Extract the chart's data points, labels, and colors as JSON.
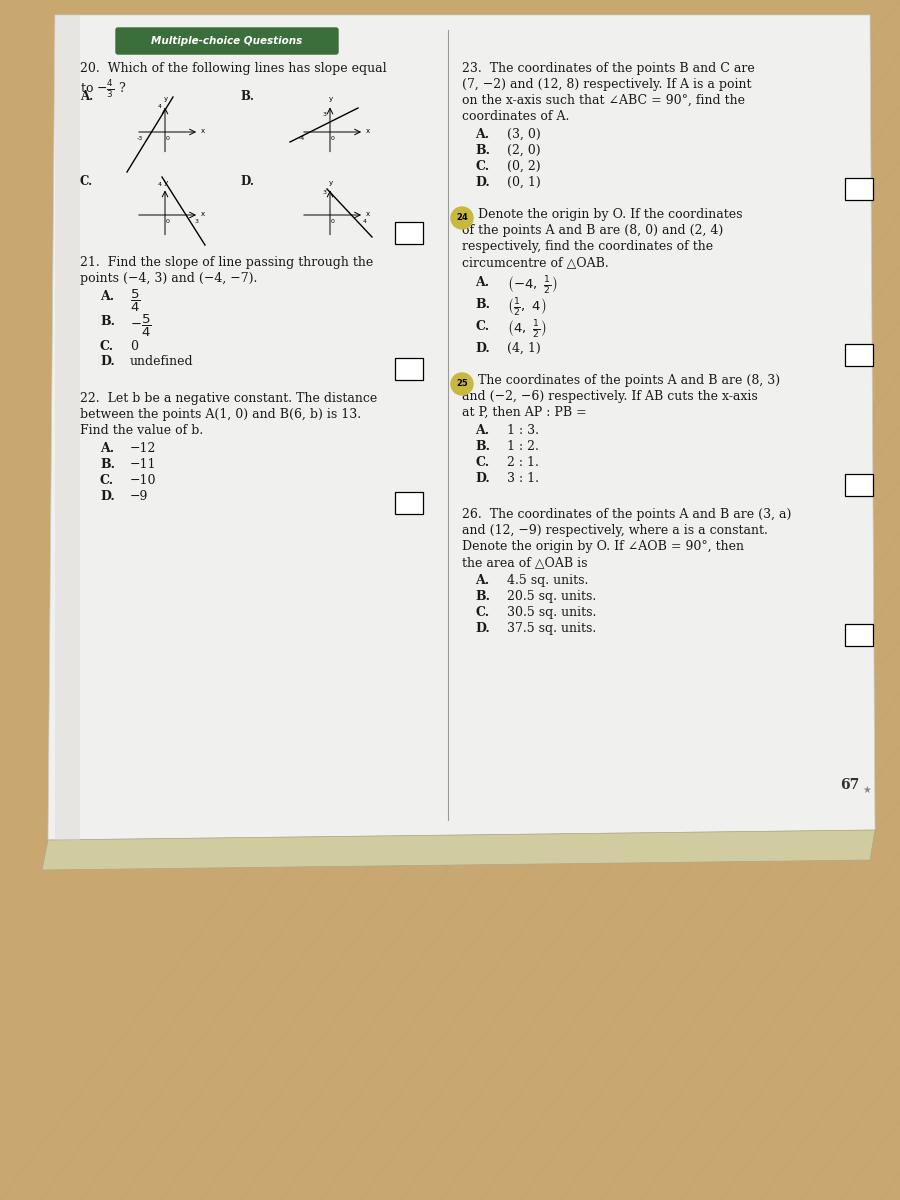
{
  "header_text": "Multiple-choice Questions",
  "text_color": "#1a1a1a",
  "page_num": "67",
  "q20_line1": "20.  Which of the following lines has slope equal",
  "q20_line2": "to −⁴⁄₃ ?",
  "q21_line1": "21.  Find the slope of line passing through the",
  "q21_line2": "points (−4, 3) and (−4, −7).",
  "q22_line1": "22.  Let b be a negative constant. The distance",
  "q22_line2": "between the points A(1, 0) and B(6, b) is 13.",
  "q22_line3": "Find the value of b.",
  "q23_line1": "23.  The coordinates of the points B and C are",
  "q23_line2": "(7, −2) and (12, 8) respectively. If A is a point",
  "q23_line3": "on the x-axis such that ∠ABC = 90°, find the",
  "q23_line4": "coordinates of A.",
  "q24_line1": "Denote the origin by O. If the coordinates",
  "q24_line2": "of the points A and B are (8, 0) and (2, 4)",
  "q24_line3": "respectively, find the coordinates of the",
  "q24_line4": "circumcentre of △OAB.",
  "q25_line1": "The coordinates of the points A and B are (8, 3)",
  "q25_line2": "and (−2, −6) respectively. If AB cuts the x-axis",
  "q25_line3": "at P, then AP : PB =",
  "q26_line1": "26.  The coordinates of the points A and B are (3, a)",
  "q26_line2": "and (12, −9) respectively, where a is a constant.",
  "q26_line3": "Denote the origin by O. If ∠AOB = 90°, then",
  "q26_line4": "the area of △OAB is",
  "paper_color": "#f2f2f0",
  "wood_color": "#c8a870",
  "book_spine_color": "#d4d0b0",
  "divider_color": "#888888",
  "header_bg": "#3a6e3a",
  "box_color": "#1a1a1a"
}
